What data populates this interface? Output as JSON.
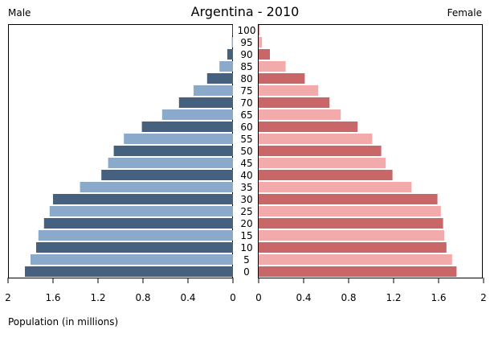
{
  "chart_data": {
    "type": "bar",
    "title": "Argentina - 2010",
    "left_label": "Male",
    "right_label": "Female",
    "xlabel": "Population (in millions)",
    "xlim": [
      0,
      2
    ],
    "x_ticks": [
      "2",
      "1.6",
      "1.2",
      "0.8",
      "0.4",
      "0",
      "0",
      "0.4",
      "0.8",
      "1.2",
      "1.6",
      "2"
    ],
    "categories": [
      "0",
      "5",
      "10",
      "15",
      "20",
      "25",
      "30",
      "35",
      "40",
      "45",
      "50",
      "55",
      "60",
      "65",
      "70",
      "75",
      "80",
      "85",
      "90",
      "95",
      "100"
    ],
    "series": [
      {
        "name": "Male",
        "values": [
          1.85,
          1.8,
          1.75,
          1.73,
          1.68,
          1.63,
          1.6,
          1.36,
          1.17,
          1.11,
          1.06,
          0.97,
          0.81,
          0.63,
          0.48,
          0.35,
          0.23,
          0.12,
          0.05,
          0.01,
          0.005
        ]
      },
      {
        "name": "Female",
        "values": [
          1.76,
          1.72,
          1.67,
          1.65,
          1.64,
          1.62,
          1.59,
          1.36,
          1.19,
          1.13,
          1.09,
          1.01,
          0.88,
          0.73,
          0.63,
          0.53,
          0.41,
          0.24,
          0.1,
          0.03,
          0.005
        ]
      }
    ],
    "colors": {
      "male_dark": "#45617f",
      "male_light": "#8aa9cb",
      "female_dark": "#c96768",
      "female_light": "#f3aaab"
    }
  }
}
